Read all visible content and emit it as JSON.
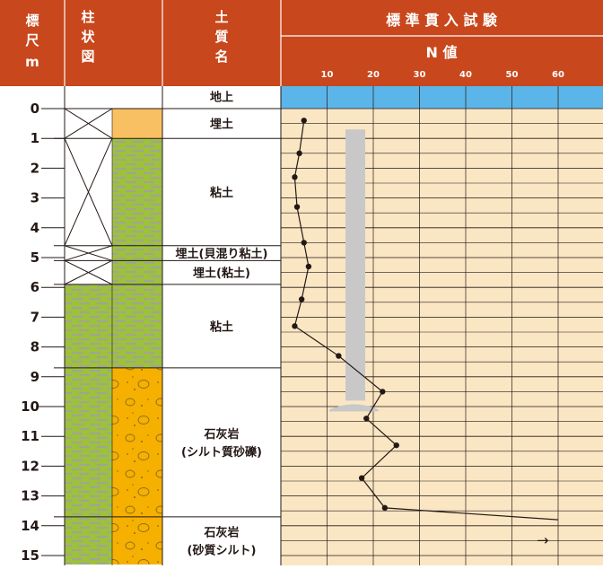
{
  "header": {
    "depth_label": [
      "標",
      "尺",
      "m"
    ],
    "column_label": [
      "柱",
      "状",
      "図"
    ],
    "soil_label": [
      "土",
      "質",
      "名"
    ],
    "spt_title": "標 準 貫 入 試 験",
    "n_value_label": "N 値",
    "n_ticks": [
      "10",
      "20",
      "30",
      "40",
      "50",
      "60"
    ]
  },
  "depth_ticks": [
    "0",
    "1",
    "2",
    "3",
    "4",
    "5",
    "6",
    "7",
    "8",
    "9",
    "10",
    "11",
    "12",
    "13",
    "14",
    "15"
  ],
  "layers": [
    {
      "name": "地上",
      "top": -0.8,
      "bottom": 0
    },
    {
      "name": "埋土",
      "top": 0,
      "bottom": 1
    },
    {
      "name": "粘土",
      "top": 1,
      "bottom": 4.6
    },
    {
      "name": "埋土(貝混り粘土)",
      "top": 4.6,
      "bottom": 5.1
    },
    {
      "name": "埋土(粘土)",
      "top": 5.1,
      "bottom": 5.9
    },
    {
      "name": "粘土",
      "top": 5.9,
      "bottom": 8.7
    },
    {
      "name": "石灰岩\n(シルト質砂礫)",
      "top": 8.7,
      "bottom": 13.7
    },
    {
      "name": "石灰岩\n(砂質シルト)",
      "top": 13.7,
      "bottom": 15.3
    }
  ],
  "colors": {
    "header_bg": "#c8471c",
    "header_text": "#ffffff",
    "sky": "#5bb5e8",
    "chart_bg": "#fbe6c4",
    "fill_soil": "#f9bf63",
    "clay": "#9cc23b",
    "clay_stripe": "#9a9a8a",
    "gravel": "#f5b000",
    "line": "#231815",
    "casing": "#c8c8c8"
  },
  "chart_data": {
    "type": "line",
    "xlabel": "N 値",
    "ylabel": "標尺 m",
    "xlim": [
      0,
      70
    ],
    "ylim": [
      0,
      15.3
    ],
    "x_ticks": [
      10,
      20,
      30,
      40,
      50,
      60
    ],
    "y_ticks": [
      0,
      1,
      2,
      3,
      4,
      5,
      6,
      7,
      8,
      9,
      10,
      11,
      12,
      13,
      14,
      15
    ],
    "series": [
      {
        "depth": [
          0.4,
          1.5,
          2.3,
          3.3,
          4.5,
          5.3,
          6.4,
          7.3,
          8.3,
          9.5,
          10.4,
          11.3,
          12.4,
          13.4,
          13.8
        ],
        "n": [
          5,
          4,
          3,
          3.5,
          5,
          6,
          4.5,
          3,
          12.5,
          22,
          18.5,
          25,
          17.5,
          22.5,
          60
        ]
      }
    ],
    "casing_depth": [
      0.7,
      9.8
    ],
    "note_arrow": "→"
  }
}
